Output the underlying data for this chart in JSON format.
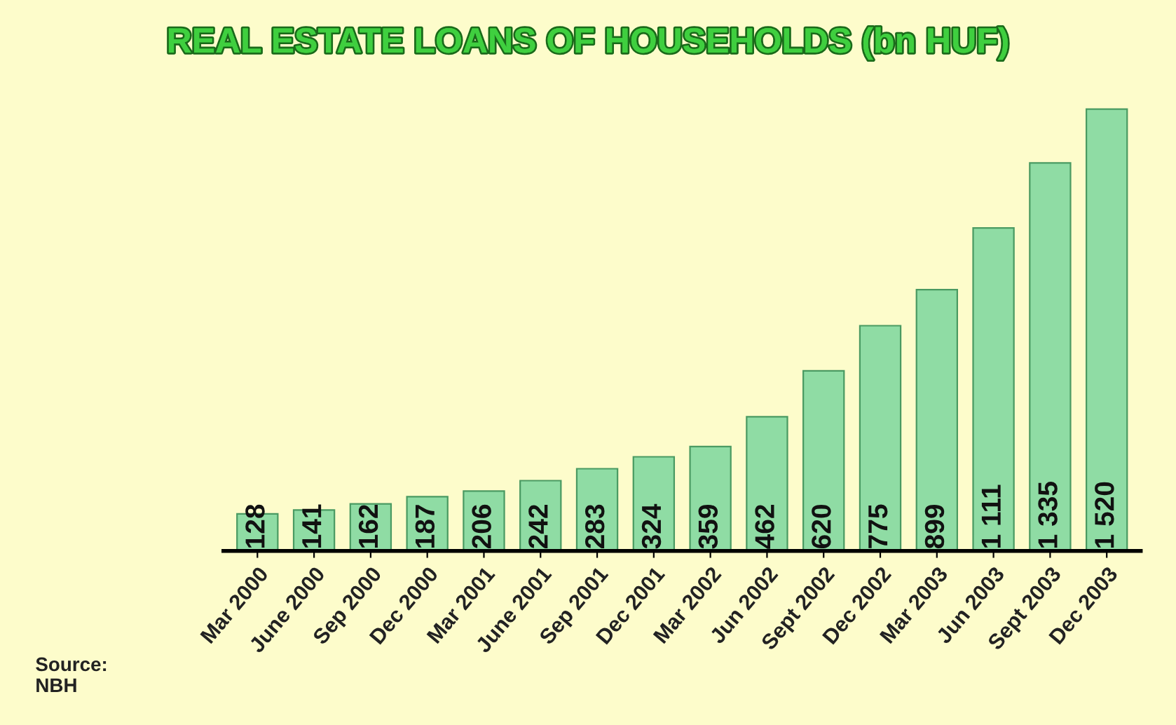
{
  "chart_data": {
    "type": "bar",
    "title": "REAL ESTATE LOANS OF HOUSEHOLDS (bn HUF)",
    "categories": [
      "Mar 2000",
      "June 2000",
      "Sep 2000",
      "Dec 2000",
      "Mar 2001",
      "June 2001",
      "Sep 2001",
      "Dec 2001",
      "Mar 2002",
      "Jun 2002",
      "Sept 2002",
      "Dec 2002",
      "Mar 2003",
      "Jun 2003",
      "Sept 2003",
      "Dec 2003"
    ],
    "values": [
      128,
      141,
      162,
      187,
      206,
      242,
      283,
      324,
      359,
      462,
      620,
      775,
      899,
      1111,
      1335,
      1520
    ],
    "value_labels": [
      "128",
      "141",
      "162",
      "187",
      "206",
      "242",
      "283",
      "324",
      "359",
      "462",
      "620",
      "775",
      "899",
      "1 111",
      "1 335",
      "1 520"
    ],
    "color": "#8fdca4",
    "tick_labels": "x",
    "grid": false,
    "annotations": [
      "Source:\nNBH"
    ]
  }
}
